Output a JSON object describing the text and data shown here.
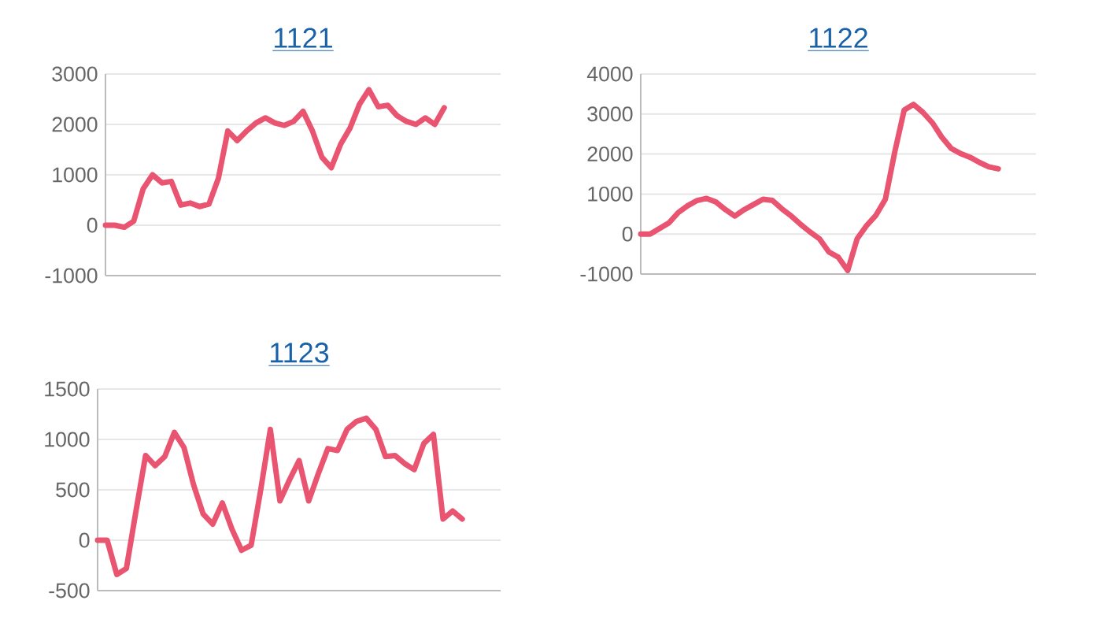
{
  "chart_data": [
    {
      "type": "line",
      "title": "1121",
      "color": "#e95470",
      "grid": "y",
      "tick_labels": "y",
      "line_style": "solid",
      "marker": "none",
      "categories": [
        null,
        null,
        null,
        null,
        null,
        null,
        null,
        null,
        null,
        null,
        null,
        null,
        null,
        null,
        null,
        null,
        null,
        null,
        null,
        null,
        null,
        null,
        null,
        null,
        null,
        null,
        null,
        null,
        null,
        null,
        null,
        null,
        null,
        null,
        null,
        null,
        null,
        null,
        null,
        null,
        null,
        null,
        null
      ],
      "values": [
        0,
        0,
        -40,
        80,
        720,
        1000,
        840,
        870,
        400,
        440,
        370,
        420,
        930,
        1870,
        1680,
        1870,
        2030,
        2130,
        2030,
        1980,
        2060,
        2260,
        1870,
        1350,
        1140,
        1610,
        1930,
        2400,
        2690,
        2350,
        2380,
        2170,
        2060,
        2000,
        2130,
        2000,
        2330,
        null,
        null,
        null,
        null,
        null,
        null
      ],
      "ylim": [
        -1000,
        3000
      ],
      "yticks": [
        -1000,
        0,
        1000,
        2000,
        3000
      ]
    },
    {
      "type": "line",
      "title": "1122",
      "color": "#e95470",
      "grid": "y",
      "tick_labels": "y",
      "line_style": "solid",
      "marker": "none",
      "categories": [
        null,
        null,
        null,
        null,
        null,
        null,
        null,
        null,
        null,
        null,
        null,
        null,
        null,
        null,
        null,
        null,
        null,
        null,
        null,
        null,
        null,
        null,
        null,
        null,
        null,
        null,
        null,
        null,
        null,
        null,
        null,
        null,
        null,
        null,
        null,
        null,
        null,
        null,
        null,
        null,
        null,
        null,
        null
      ],
      "values": [
        0,
        0,
        140,
        280,
        540,
        710,
        840,
        890,
        800,
        610,
        450,
        610,
        740,
        870,
        840,
        630,
        450,
        240,
        50,
        -120,
        -450,
        -580,
        -910,
        -120,
        210,
        470,
        870,
        2050,
        3100,
        3240,
        3040,
        2780,
        2420,
        2140,
        2010,
        1920,
        1790,
        1680,
        1630,
        null,
        null,
        null,
        null
      ],
      "ylim": [
        -1000,
        4000
      ],
      "yticks": [
        -1000,
        0,
        1000,
        2000,
        3000,
        4000
      ]
    },
    {
      "type": "line",
      "title": "1123",
      "color": "#e95470",
      "grid": "y",
      "tick_labels": "y",
      "line_style": "solid",
      "marker": "none",
      "categories": [
        null,
        null,
        null,
        null,
        null,
        null,
        null,
        null,
        null,
        null,
        null,
        null,
        null,
        null,
        null,
        null,
        null,
        null,
        null,
        null,
        null,
        null,
        null,
        null,
        null,
        null,
        null,
        null,
        null,
        null,
        null,
        null,
        null,
        null,
        null,
        null,
        null,
        null,
        null,
        null,
        null,
        null,
        null
      ],
      "values": [
        0,
        0,
        -340,
        -280,
        290,
        840,
        740,
        830,
        1070,
        920,
        550,
        260,
        160,
        370,
        110,
        -100,
        -50,
        500,
        1100,
        390,
        600,
        790,
        390,
        660,
        910,
        890,
        1100,
        1180,
        1210,
        1100,
        830,
        840,
        760,
        700,
        960,
        1050,
        210,
        290,
        210,
        null,
        null,
        null,
        null
      ],
      "ylim": [
        -500,
        1500
      ],
      "yticks": [
        -500,
        0,
        500,
        1000,
        1500
      ]
    }
  ]
}
